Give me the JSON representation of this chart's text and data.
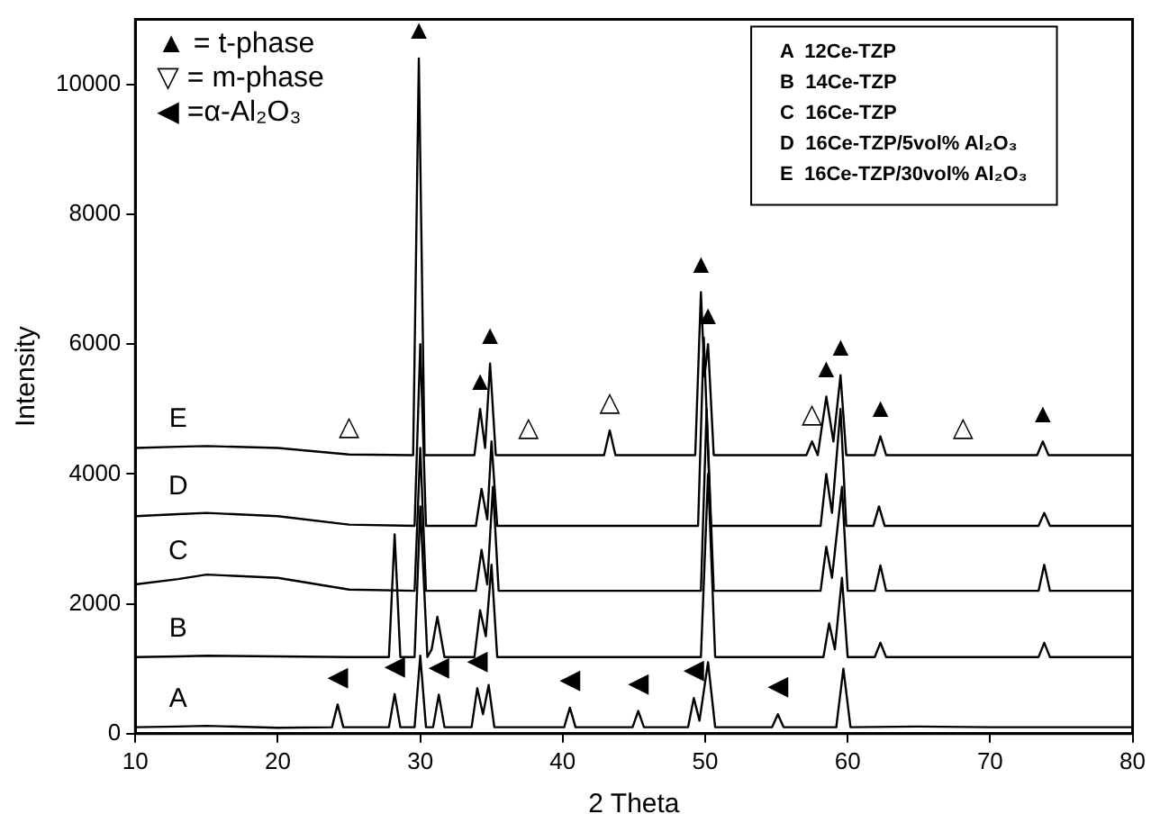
{
  "chart_data": {
    "type": "line",
    "xlabel": "2 Theta",
    "ylabel": "Intensity",
    "xlim": [
      10,
      80
    ],
    "xticks": [
      10,
      20,
      30,
      40,
      50,
      60,
      70,
      80
    ],
    "ylim": [
      0,
      11000
    ],
    "yticks": [
      0,
      2000,
      4000,
      6000,
      8000,
      10000
    ],
    "marker": "none",
    "legend": false,
    "series": [
      {
        "color": "#000000",
        "x": [
          10,
          13,
          15,
          20,
          23.8,
          24.2,
          24.6,
          27.8,
          28.2,
          28.6,
          29.6,
          30.0,
          30.4,
          30.9,
          31.3,
          31.7,
          33.6,
          34.0,
          34.4,
          34.8,
          35.2,
          40.1,
          40.5,
          40.9,
          44.9,
          45.3,
          45.7,
          48.8,
          49.2,
          49.6,
          50.2,
          50.7,
          54.7,
          55.1,
          55.5,
          59.2,
          59.7,
          60.2,
          65,
          70,
          75,
          80
        ],
        "values": [
          100,
          110,
          120,
          90,
          100,
          450,
          100,
          100,
          610,
          100,
          100,
          1200,
          100,
          100,
          600,
          100,
          100,
          700,
          300,
          750,
          100,
          100,
          400,
          100,
          100,
          350,
          100,
          100,
          550,
          200,
          1100,
          100,
          100,
          300,
          100,
          100,
          1000,
          100,
          110,
          100,
          100,
          100
        ]
      },
      {
        "color": "#000000",
        "x": [
          10,
          13,
          15,
          20,
          25,
          27.8,
          28.2,
          28.6,
          29.6,
          30.0,
          30.5,
          30.8,
          31.2,
          31.7,
          33.8,
          34.2,
          34.6,
          35.0,
          35.4,
          45,
          49.7,
          50.2,
          50.7,
          58.3,
          58.7,
          59.1,
          59.6,
          60.0,
          61.9,
          62.3,
          62.7,
          70,
          73.4,
          73.8,
          74.2,
          80
        ],
        "values": [
          1180,
          1190,
          1200,
          1190,
          1180,
          1180,
          3070,
          1180,
          1180,
          3500,
          1180,
          1300,
          1800,
          1180,
          1180,
          1900,
          1500,
          2600,
          1180,
          1180,
          1180,
          4000,
          1180,
          1180,
          1700,
          1300,
          2400,
          1180,
          1180,
          1400,
          1180,
          1180,
          1180,
          1400,
          1180,
          1180
        ]
      },
      {
        "color": "#000000",
        "x": [
          10,
          13,
          15,
          20,
          25,
          29.6,
          30.0,
          30.4,
          33.9,
          34.3,
          34.7,
          35.1,
          35.5,
          45,
          49.7,
          50.1,
          50.6,
          58.1,
          58.5,
          58.9,
          59.6,
          60.0,
          61.9,
          62.3,
          62.7,
          70,
          73.4,
          73.8,
          74.2,
          80
        ],
        "values": [
          2300,
          2380,
          2450,
          2400,
          2220,
          2200,
          4400,
          2200,
          2200,
          2830,
          2300,
          3800,
          2200,
          2200,
          2200,
          5000,
          2200,
          2200,
          2880,
          2400,
          3800,
          2200,
          2200,
          2590,
          2200,
          2200,
          2200,
          2600,
          2200,
          2200
        ]
      },
      {
        "color": "#000000",
        "x": [
          10,
          13,
          15,
          20,
          25,
          29.6,
          30.0,
          30.4,
          33.9,
          34.3,
          34.7,
          35.0,
          35.4,
          45,
          49.5,
          49.9,
          50.4,
          58.1,
          58.5,
          58.9,
          59.5,
          59.9,
          61.8,
          62.2,
          62.6,
          70,
          73.4,
          73.8,
          74.2,
          80
        ],
        "values": [
          3350,
          3380,
          3400,
          3350,
          3220,
          3200,
          6000,
          3200,
          3200,
          3770,
          3300,
          4500,
          3200,
          3200,
          3200,
          6100,
          3200,
          3200,
          4000,
          3400,
          5000,
          3200,
          3200,
          3500,
          3200,
          3200,
          3200,
          3400,
          3200,
          3200
        ]
      },
      {
        "color": "#000000",
        "x": [
          10,
          13,
          15,
          20,
          25,
          29.5,
          29.9,
          30.3,
          33.8,
          34.2,
          34.55,
          34.9,
          35.3,
          37.6,
          42.9,
          43.3,
          43.7,
          49.3,
          49.7,
          49.95,
          50.2,
          50.6,
          57.1,
          57.5,
          57.9,
          58.5,
          59.0,
          59.5,
          59.9,
          61.9,
          62.3,
          62.7,
          68.1,
          73.3,
          73.7,
          74.1,
          80
        ],
        "values": [
          4400,
          4420,
          4430,
          4400,
          4300,
          4290,
          10400,
          4290,
          4290,
          5000,
          4400,
          5700,
          4290,
          4290,
          4290,
          4670,
          4290,
          4290,
          6800,
          5500,
          6000,
          4290,
          4290,
          4500,
          4290,
          5190,
          4500,
          5520,
          4290,
          4290,
          4580,
          4290,
          4290,
          4290,
          4500,
          4290,
          4290
        ]
      }
    ],
    "annotations": [
      "▲ = t-phase",
      "▽ = m-phase",
      "◀ =α-Al₂O₃",
      "A  12Ce-TZP",
      "B  14Ce-TZP",
      "C  16Ce-TZP",
      "D  16Ce-TZP/5vol% Al₂O₃",
      "E  16Ce-TZP/30vol% Al₂O₃",
      {
        "text": "A",
        "x": 13,
        "y": 110
      },
      {
        "text": "B",
        "x": 13,
        "y": 1190
      },
      {
        "text": "C",
        "x": 13,
        "y": 2380
      },
      {
        "text": "D",
        "x": 13,
        "y": 3380
      },
      {
        "text": "E",
        "x": 13,
        "y": 4420
      },
      {
        "text": "▲",
        "x": 29.9,
        "y": 10400
      },
      {
        "text": "▲",
        "x": 34.2,
        "y": 5000
      },
      {
        "text": "▲",
        "x": 34.9,
        "y": 5700
      },
      {
        "text": "▲",
        "x": 49.7,
        "y": 6800
      },
      {
        "text": "▲",
        "x": 50.2,
        "y": 6000
      },
      {
        "text": "▲",
        "x": 58.5,
        "y": 5190
      },
      {
        "text": "▲",
        "x": 59.5,
        "y": 5520
      },
      {
        "text": "▲",
        "x": 62.3,
        "y": 4580
      },
      {
        "text": "▲",
        "x": 73.7,
        "y": 4500
      },
      {
        "text": "△",
        "x": 25,
        "y": 4300
      },
      {
        "text": "△",
        "x": 37.6,
        "y": 4290
      },
      {
        "text": "△",
        "x": 43.3,
        "y": 4670
      },
      {
        "text": "△",
        "x": 57.5,
        "y": 4500
      },
      {
        "text": "△",
        "x": 68.1,
        "y": 4290
      },
      {
        "text": "◀",
        "x": 24.2,
        "y": 450
      },
      {
        "text": "◀",
        "x": 28.2,
        "y": 610
      },
      {
        "text": "◀",
        "x": 31.3,
        "y": 600
      },
      {
        "text": "◀",
        "x": 34.0,
        "y": 700
      },
      {
        "text": "◀",
        "x": 40.5,
        "y": 400
      },
      {
        "text": "◀",
        "x": 45.3,
        "y": 350
      },
      {
        "text": "◀",
        "x": 49.2,
        "y": 550
      },
      {
        "text": "◀",
        "x": 55.1,
        "y": 300
      }
    ]
  }
}
